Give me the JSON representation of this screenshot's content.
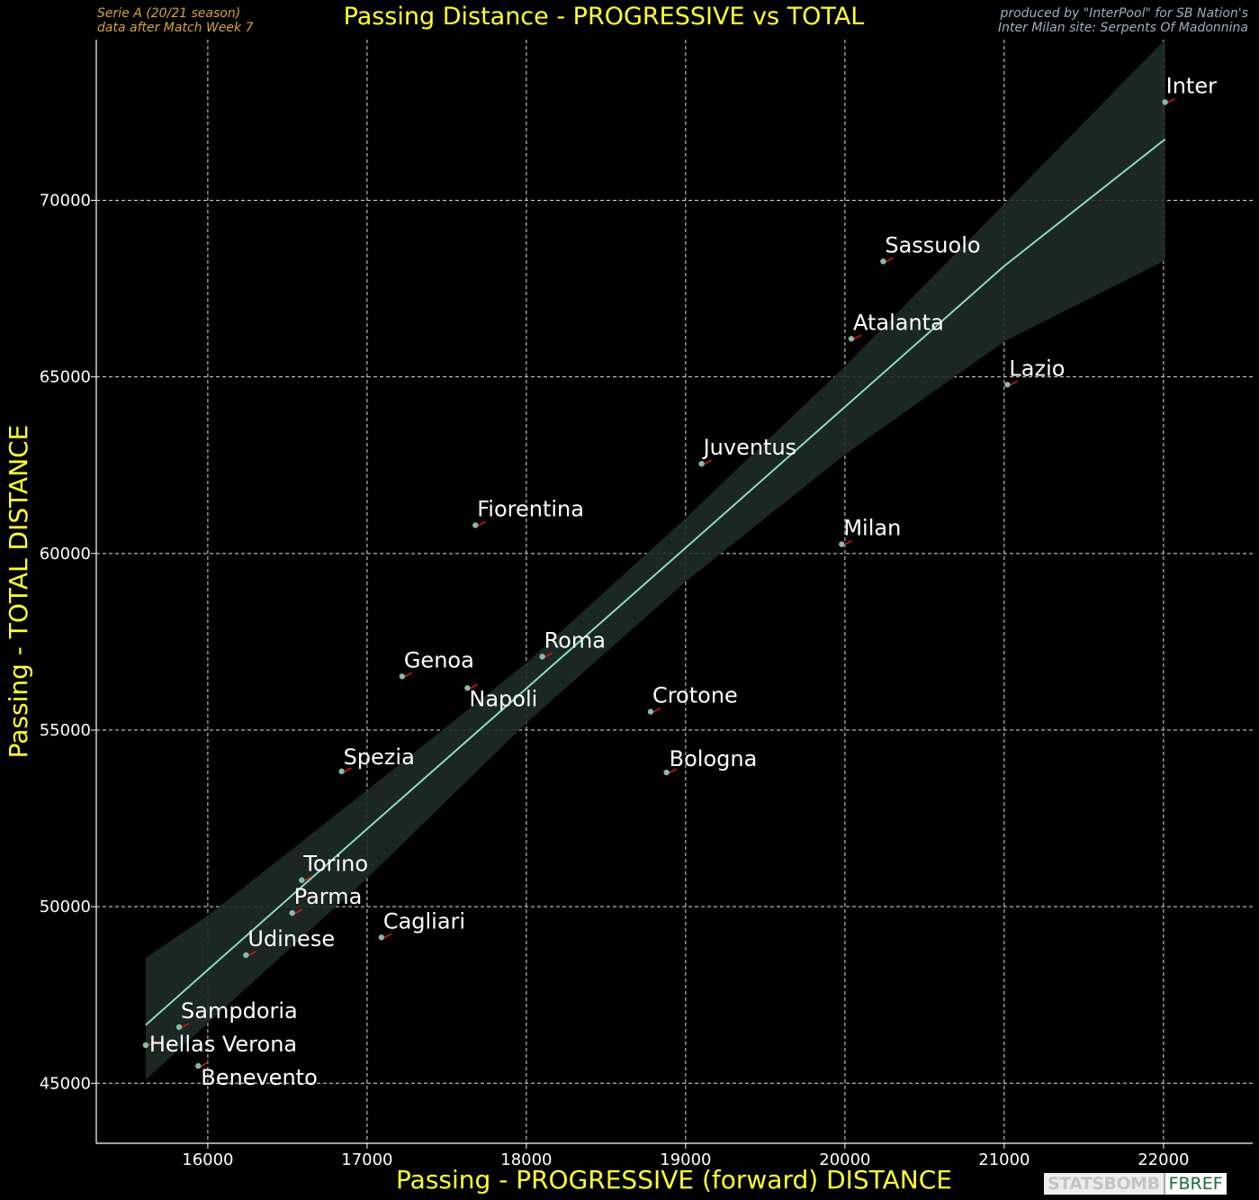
{
  "header": {
    "season_line": "Serie A  (20/21 season)",
    "week_line": "data after Match Week 7",
    "credit_line1": "produced by \"InterPool\" for SB Nation's",
    "credit_line2": "Inter Milan site: Serpents Of Madonnina"
  },
  "logos": {
    "statsbomb": "STATSBOMB",
    "fbref": "FBREF"
  },
  "chart_data": {
    "type": "scatter",
    "title": "Passing Distance - PROGRESSIVE vs TOTAL",
    "xlabel": "Passing - PROGRESSIVE (forward) DISTANCE",
    "ylabel": "Passing - TOTAL DISTANCE",
    "xlim": [
      15300,
      22560
    ],
    "ylim": [
      43300,
      74550
    ],
    "xticks": [
      16000,
      17000,
      18000,
      19000,
      20000,
      21000,
      22000
    ],
    "yticks": [
      45000,
      50000,
      55000,
      60000,
      65000,
      70000
    ],
    "grid": true,
    "colors": {
      "title": "#ffff33",
      "point": "#8ab9a8",
      "arrow": "#d01818",
      "regression_line": "#8fd8c3",
      "confidence_band": "#1d2b26"
    },
    "points": [
      {
        "label": "Inter",
        "x": 22010,
        "y": 72780
      },
      {
        "label": "Sassuolo",
        "x": 20240,
        "y": 68270
      },
      {
        "label": "Atalanta",
        "x": 20040,
        "y": 66080
      },
      {
        "label": "Lazio",
        "x": 21020,
        "y": 64780
      },
      {
        "label": "Juventus",
        "x": 19100,
        "y": 62540
      },
      {
        "label": "Fiorentina",
        "x": 17680,
        "y": 60800
      },
      {
        "label": "Milan",
        "x": 19980,
        "y": 60260
      },
      {
        "label": "Roma",
        "x": 18100,
        "y": 57080
      },
      {
        "label": "Genoa",
        "x": 17220,
        "y": 56520
      },
      {
        "label": "Napoli",
        "x": 17630,
        "y": 56190
      },
      {
        "label": "Crotone",
        "x": 18780,
        "y": 55520
      },
      {
        "label": "Spezia",
        "x": 16840,
        "y": 53830
      },
      {
        "label": "Bologna",
        "x": 18880,
        "y": 53800
      },
      {
        "label": "Torino",
        "x": 16590,
        "y": 50750
      },
      {
        "label": "Parma",
        "x": 16530,
        "y": 49820
      },
      {
        "label": "Cagliari",
        "x": 17090,
        "y": 49130
      },
      {
        "label": "Udinese",
        "x": 16240,
        "y": 48630
      },
      {
        "label": "Sampdoria",
        "x": 15820,
        "y": 46590
      },
      {
        "label": "Hellas Verona",
        "x": 15610,
        "y": 46080
      },
      {
        "label": "Benevento",
        "x": 15940,
        "y": 45490
      }
    ],
    "regression": {
      "x": [
        15610,
        16000,
        17000,
        18000,
        19000,
        20000,
        21000,
        22010
      ],
      "y": [
        46650,
        48210,
        52200,
        56180,
        60160,
        64150,
        68140,
        71730
      ]
    },
    "confidence_band": {
      "x": [
        15610,
        16000,
        17000,
        18000,
        19000,
        20000,
        21000,
        22010
      ],
      "upper": [
        48550,
        49750,
        53300,
        56900,
        61000,
        65300,
        69900,
        74550
      ],
      "lower": [
        45100,
        46700,
        50800,
        55200,
        59200,
        62800,
        66000,
        68300
      ]
    }
  }
}
